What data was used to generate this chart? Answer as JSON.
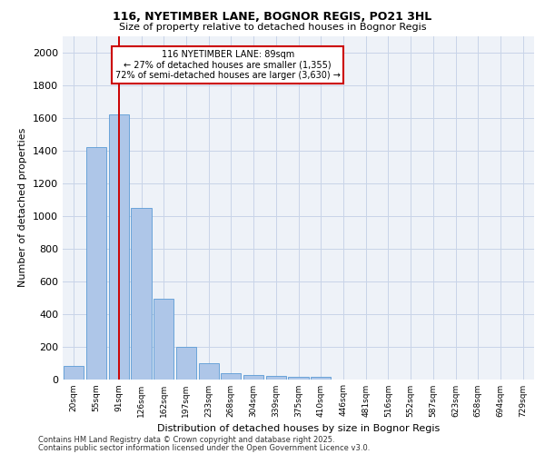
{
  "title1": "116, NYETIMBER LANE, BOGNOR REGIS, PO21 3HL",
  "title2": "Size of property relative to detached houses in Bognor Regis",
  "xlabel": "Distribution of detached houses by size in Bognor Regis",
  "ylabel": "Number of detached properties",
  "categories": [
    "20sqm",
    "55sqm",
    "91sqm",
    "126sqm",
    "162sqm",
    "197sqm",
    "233sqm",
    "268sqm",
    "304sqm",
    "339sqm",
    "375sqm",
    "410sqm",
    "446sqm",
    "481sqm",
    "516sqm",
    "552sqm",
    "587sqm",
    "623sqm",
    "658sqm",
    "694sqm",
    "729sqm"
  ],
  "values": [
    80,
    1420,
    1620,
    1050,
    490,
    200,
    100,
    35,
    25,
    20,
    15,
    15,
    0,
    0,
    0,
    0,
    0,
    0,
    0,
    0,
    0
  ],
  "bar_color": "#aec6e8",
  "bar_edge_color": "#5b9bd5",
  "grid_color": "#c8d4e8",
  "background_color": "#eef2f8",
  "vline_color": "#cc0000",
  "annotation_box_text": "116 NYETIMBER LANE: 89sqm\n← 27% of detached houses are smaller (1,355)\n72% of semi-detached houses are larger (3,630) →",
  "annotation_box_color": "#cc0000",
  "footnote1": "Contains HM Land Registry data © Crown copyright and database right 2025.",
  "footnote2": "Contains public sector information licensed under the Open Government Licence v3.0.",
  "ylim": [
    0,
    2100
  ],
  "yticks": [
    0,
    200,
    400,
    600,
    800,
    1000,
    1200,
    1400,
    1600,
    1800,
    2000
  ]
}
